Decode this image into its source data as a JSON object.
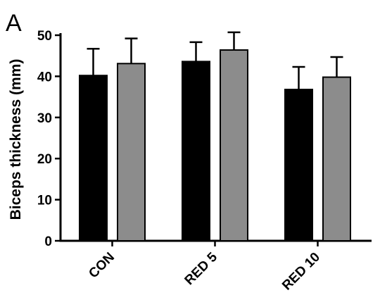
{
  "panel_label": "A",
  "chart_data": {
    "type": "bar",
    "title": "",
    "xlabel": "",
    "ylabel": "Biceps thickness  (mm)",
    "ylim": [
      0,
      50
    ],
    "yticks": [
      0,
      10,
      20,
      30,
      40,
      50
    ],
    "grid": false,
    "categories": [
      "CON",
      "RED 5",
      "RED 10"
    ],
    "series": [
      {
        "color": "#000000",
        "values": [
          40.2,
          43.6,
          36.8
        ],
        "errors": [
          6.5,
          4.7,
          5.5
        ]
      },
      {
        "color": "#8c8c8c",
        "values": [
          43.1,
          46.4,
          39.8
        ],
        "errors": [
          6.1,
          4.3,
          4.9
        ]
      }
    ]
  }
}
